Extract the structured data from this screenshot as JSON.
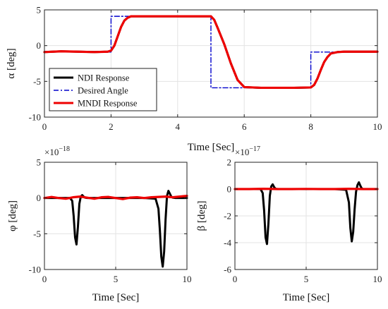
{
  "chart_data": [
    {
      "type": "line",
      "xlabel": "Time  [Sec]",
      "ylabel": "α  [deg]",
      "xlim": [
        0,
        10
      ],
      "ylim": [
        -10,
        5
      ],
      "xticks": [
        "0",
        "2",
        "4",
        "6",
        "8",
        "10"
      ],
      "yticks": [
        "5",
        "0",
        "-5",
        "-10"
      ],
      "grid": true,
      "legend_position": "bottom-left",
      "series": [
        {
          "name": "NDI Response",
          "color": "#000000",
          "style": "solid",
          "x": [
            0,
            0.5,
            1.0,
            1.5,
            1.9,
            2.0,
            2.1,
            2.2,
            2.3,
            2.4,
            2.5,
            2.6,
            2.8,
            3.0,
            4.0,
            5.0,
            5.1,
            5.2,
            5.4,
            5.6,
            5.8,
            6.0,
            6.5,
            7.0,
            7.5,
            8.0,
            8.1,
            8.2,
            8.3,
            8.4,
            8.5,
            8.6,
            8.8,
            9.0,
            9.5,
            10.0
          ],
          "y": [
            -0.9,
            -0.8,
            -0.85,
            -0.9,
            -0.85,
            -0.7,
            0.0,
            1.3,
            2.6,
            3.5,
            3.9,
            4.1,
            4.1,
            4.1,
            4.1,
            4.1,
            3.6,
            2.5,
            0.2,
            -2.5,
            -4.8,
            -5.8,
            -5.9,
            -5.9,
            -5.9,
            -5.85,
            -5.5,
            -4.6,
            -3.4,
            -2.3,
            -1.6,
            -1.1,
            -0.9,
            -0.85,
            -0.85,
            -0.85
          ]
        },
        {
          "name": "Desired Angle",
          "color": "#0000cc",
          "style": "dashdot",
          "x": [
            0,
            2.0,
            2.0,
            5.0,
            5.0,
            8.0,
            8.0,
            10.0
          ],
          "y": [
            -0.9,
            -0.9,
            4.1,
            4.1,
            -5.9,
            -5.9,
            -0.9,
            -0.9
          ]
        },
        {
          "name": "MNDI Response",
          "color": "#ee0000",
          "style": "solid",
          "x": [
            0,
            0.5,
            1.0,
            1.5,
            1.9,
            2.0,
            2.1,
            2.2,
            2.3,
            2.4,
            2.5,
            2.6,
            2.8,
            3.0,
            4.0,
            5.0,
            5.1,
            5.2,
            5.4,
            5.6,
            5.8,
            6.0,
            6.5,
            7.0,
            7.5,
            8.0,
            8.1,
            8.2,
            8.3,
            8.4,
            8.5,
            8.6,
            8.8,
            9.0,
            9.5,
            10.0
          ],
          "y": [
            -0.9,
            -0.8,
            -0.85,
            -0.9,
            -0.85,
            -0.7,
            0.0,
            1.3,
            2.6,
            3.5,
            3.9,
            4.1,
            4.1,
            4.1,
            4.1,
            4.1,
            3.6,
            2.5,
            0.2,
            -2.5,
            -4.8,
            -5.8,
            -5.9,
            -5.9,
            -5.9,
            -5.85,
            -5.5,
            -4.6,
            -3.4,
            -2.3,
            -1.6,
            -1.1,
            -0.9,
            -0.85,
            -0.85,
            -0.85
          ]
        }
      ]
    },
    {
      "type": "line",
      "xlabel": "Time  [Sec]",
      "ylabel": "φ  [deg]",
      "scale_base": "×10",
      "scale_exp": "−18",
      "xlim": [
        0,
        10
      ],
      "ylim": [
        -10,
        5
      ],
      "xticks": [
        "0",
        "5",
        "10"
      ],
      "yticks": [
        "5",
        "0",
        "-5",
        "-10"
      ],
      "grid": true,
      "series": [
        {
          "name": "NDI Response",
          "color": "#000000",
          "x": [
            0,
            1.0,
            1.8,
            1.95,
            2.05,
            2.15,
            2.25,
            2.35,
            2.45,
            2.55,
            2.65,
            2.75,
            2.85,
            3.0,
            3.5,
            5.0,
            6.0,
            7.0,
            7.8,
            8.0,
            8.1,
            8.2,
            8.3,
            8.4,
            8.5,
            8.6,
            8.7,
            8.8,
            8.9,
            9.0,
            9.2,
            9.5,
            10.0
          ],
          "y": [
            0,
            0,
            0,
            -0.4,
            -2.5,
            -5.5,
            -6.5,
            -4.0,
            -0.8,
            0.2,
            0.4,
            0.2,
            0.05,
            0,
            0,
            0,
            0,
            0,
            -0.1,
            -1.5,
            -4.5,
            -8.2,
            -9.6,
            -7.5,
            -3.0,
            0.3,
            1.0,
            0.6,
            0.2,
            0.05,
            0,
            0,
            0
          ]
        },
        {
          "name": "MNDI Response",
          "color": "#ee0000",
          "x": [
            0,
            0.5,
            1.0,
            1.5,
            2.0,
            2.5,
            3.0,
            3.5,
            4.0,
            4.5,
            5.0,
            5.5,
            6.0,
            6.5,
            7.0,
            7.5,
            8.0,
            8.5,
            9.0,
            9.5,
            10.0
          ],
          "y": [
            0,
            0.15,
            0.0,
            -0.1,
            0.1,
            0.2,
            0.05,
            -0.1,
            0.1,
            0.15,
            0.0,
            -0.15,
            0.05,
            0.1,
            0.0,
            0.1,
            0.15,
            0.2,
            0.1,
            0.2,
            0.3
          ]
        }
      ]
    },
    {
      "type": "line",
      "xlabel": "Time  [Sec]",
      "ylabel": "β  [deg]",
      "scale_base": "×10",
      "scale_exp": "−17",
      "xlim": [
        0,
        10
      ],
      "ylim": [
        -6,
        2
      ],
      "xticks": [
        "0",
        "5",
        "10"
      ],
      "yticks": [
        "2",
        "0",
        "-2",
        "-4",
        "-6"
      ],
      "grid": true,
      "series": [
        {
          "name": "NDI Response",
          "color": "#000000",
          "x": [
            0,
            1.0,
            1.8,
            1.95,
            2.05,
            2.15,
            2.25,
            2.35,
            2.45,
            2.55,
            2.65,
            2.75,
            2.85,
            3.0,
            3.5,
            5.0,
            6.0,
            7.0,
            7.8,
            8.0,
            8.1,
            8.2,
            8.3,
            8.4,
            8.5,
            8.6,
            8.7,
            8.8,
            8.9,
            9.0,
            9.2,
            9.5,
            10.0
          ],
          "y": [
            0,
            0,
            0,
            -0.3,
            -1.6,
            -3.6,
            -4.1,
            -2.6,
            -0.5,
            0.2,
            0.35,
            0.15,
            0.02,
            0,
            0,
            0,
            0,
            0,
            -0.05,
            -1.0,
            -2.9,
            -3.9,
            -3.2,
            -1.5,
            -0.2,
            0.3,
            0.5,
            0.25,
            0.05,
            0,
            0,
            0,
            0
          ]
        },
        {
          "name": "MNDI Response",
          "color": "#ee0000",
          "x": [
            0,
            1.0,
            2.0,
            3.0,
            4.0,
            5.0,
            6.0,
            7.0,
            8.0,
            9.0,
            10.0
          ],
          "y": [
            0,
            0.0,
            0.02,
            0.0,
            0.0,
            0.01,
            0.0,
            0.0,
            0.02,
            0.0,
            0.0
          ]
        }
      ]
    }
  ]
}
